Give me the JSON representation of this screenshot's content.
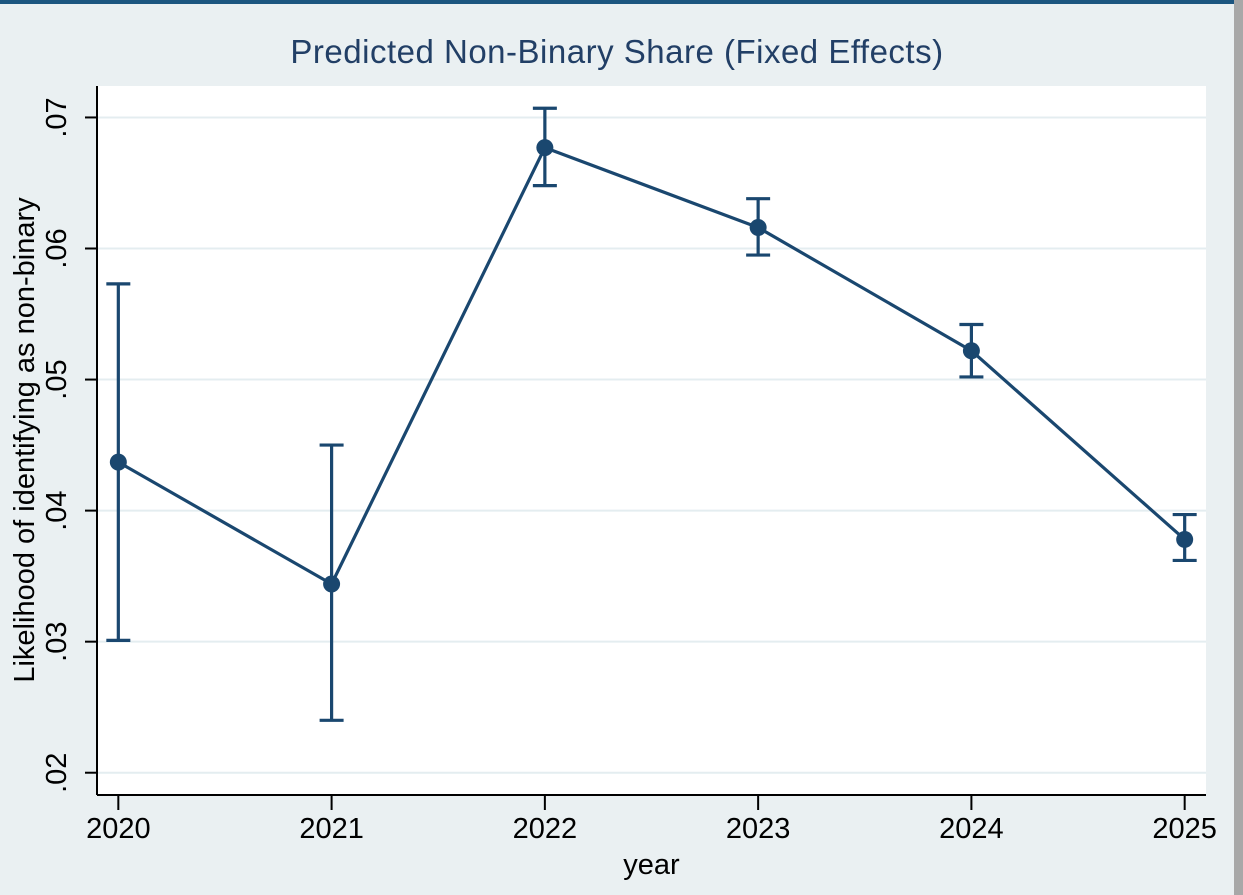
{
  "window": {
    "top_border_color": "#1c5680",
    "background_color": "#eaf0f2",
    "scrollbar_color": "#a8a8a8",
    "plot_background": "#ffffff"
  },
  "chart_data": {
    "type": "line",
    "title": "Predicted Non-Binary Share (Fixed Effects)",
    "xlabel": "year",
    "ylabel": "Likelihood of identifying as non-binary",
    "x": [
      2020,
      2021,
      2022,
      2023,
      2024,
      2025
    ],
    "xtick_labels": [
      "2020",
      "2021",
      "2022",
      "2023",
      "2024",
      "2025"
    ],
    "yticks": [
      0.02,
      0.03,
      0.04,
      0.05,
      0.06,
      0.07
    ],
    "ytick_labels": [
      ".02",
      ".03",
      ".04",
      ".05",
      ".06",
      ".07"
    ],
    "xlim": [
      2019.9,
      2025.1
    ],
    "ylim": [
      0.0183,
      0.0724
    ],
    "grid": true,
    "legend_position": "none",
    "series": [
      {
        "name": "Predicted non-binary share",
        "values": [
          0.0437,
          0.0344,
          0.0677,
          0.0616,
          0.0522,
          0.0378
        ],
        "ci_low": [
          0.0301,
          0.024,
          0.0648,
          0.0595,
          0.0502,
          0.0362
        ],
        "ci_high": [
          0.0573,
          0.045,
          0.0707,
          0.0638,
          0.0542,
          0.0397
        ]
      }
    ],
    "line_color": "#1a476f",
    "marker_color": "#1a476f",
    "error_bar_color": "#1a476f",
    "grid_color": "#e4edf0",
    "axis_color": "#000000",
    "tick_label_color": "#000000",
    "title_color": "#223f66"
  }
}
